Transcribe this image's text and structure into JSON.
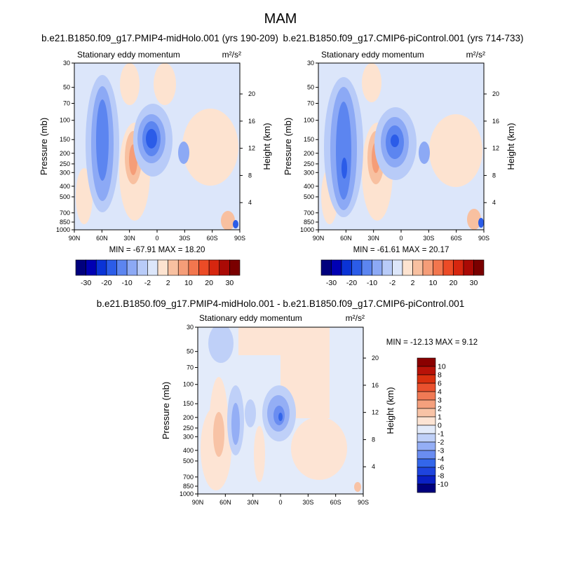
{
  "page_title": "MAM",
  "colors": {
    "cb_top": [
      "#00007d",
      "#0000b3",
      "#0a33d6",
      "#2b5ce8",
      "#5c85f0",
      "#8ca9f5",
      "#b8cbf8",
      "#dce6fa",
      "#fde3d0",
      "#f8c0a0",
      "#f59d78",
      "#f2764e",
      "#ec4b26",
      "#d6260f",
      "#aa0a05",
      "#7a0000"
    ],
    "cb_diff": [
      "#00007d",
      "#0a20c4",
      "#1e44de",
      "#3366ea",
      "#6a8df1",
      "#94aef5",
      "#bfd0f8",
      "#e3ebfa",
      "#fde4d4",
      "#f8c3a6",
      "#f4a07d",
      "#f07a55",
      "#ea512e",
      "#d9300f",
      "#b81208",
      "#8a0000"
    ]
  },
  "chart_data": [
    {
      "id": "panel-left",
      "type": "contour",
      "title": "b.e21.B1850.f09_g17.PMIP4-midHolo.001 (yrs 190-209)",
      "subtitle_left": "Stationary eddy momentum",
      "units": "m²/s²",
      "ylabel": "Pressure (mb)",
      "ylabel_right": "Height (km)",
      "x_ticks": [
        "90N",
        "60N",
        "30N",
        "0",
        "30S",
        "60S",
        "90S"
      ],
      "y_ticks": [
        "30",
        "50",
        "70",
        "100",
        "150",
        "200",
        "250",
        "300",
        "400",
        "500",
        "700",
        "850",
        "1000"
      ],
      "y_ticks_right": [
        "20",
        "16",
        "12",
        "8",
        "4"
      ],
      "stats": "MIN = -67.91  MAX =  18.20",
      "colorbar_labels": [
        "-30",
        "-20",
        "-10",
        "-2",
        "2",
        "10",
        "20",
        "30"
      ]
    },
    {
      "id": "panel-right",
      "type": "contour",
      "title": "b.e21.B1850.f09_g17.CMIP6-piControl.001 (yrs 714-733)",
      "subtitle_left": "Stationary eddy momentum",
      "units": "m²/s²",
      "ylabel": "Pressure (mb)",
      "ylabel_right": "Height (km)",
      "x_ticks": [
        "90N",
        "60N",
        "30N",
        "0",
        "30S",
        "60S",
        "90S"
      ],
      "y_ticks": [
        "30",
        "50",
        "70",
        "100",
        "150",
        "200",
        "250",
        "300",
        "400",
        "500",
        "700",
        "850",
        "1000"
      ],
      "y_ticks_right": [
        "20",
        "16",
        "12",
        "8",
        "4"
      ],
      "stats": "MIN = -61.61  MAX =  20.17",
      "colorbar_labels": [
        "-30",
        "-20",
        "-10",
        "-2",
        "2",
        "10",
        "20",
        "30"
      ]
    },
    {
      "id": "panel-diff",
      "type": "contour",
      "title": "b.e21.B1850.f09_g17.PMIP4-midHolo.001 - b.e21.B1850.f09_g17.CMIP6-piControl.001",
      "subtitle_left": "Stationary eddy momentum",
      "units": "m²/s²",
      "ylabel": "Pressure (mb)",
      "ylabel_right": "Height (km)",
      "x_ticks": [
        "90N",
        "60N",
        "30N",
        "0",
        "30S",
        "60S",
        "90S"
      ],
      "y_ticks": [
        "30",
        "50",
        "70",
        "100",
        "150",
        "200",
        "250",
        "300",
        "400",
        "500",
        "700",
        "850",
        "1000"
      ],
      "y_ticks_right": [
        "20",
        "16",
        "12",
        "8",
        "4"
      ],
      "stats": "MIN = -12.13  MAX =   9.12",
      "colorbar_labels": [
        "10",
        "8",
        "6",
        "4",
        "3",
        "2",
        "1",
        "0",
        "-1",
        "-2",
        "-3",
        "-4",
        "-6",
        "-8",
        "-10"
      ]
    }
  ]
}
